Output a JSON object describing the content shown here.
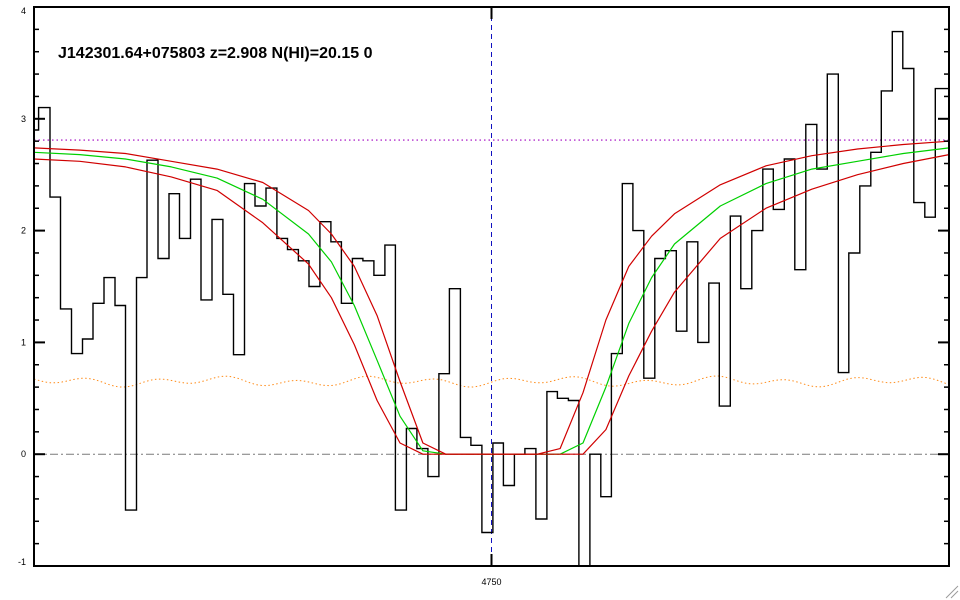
{
  "chart_data": {
    "type": "line",
    "title": "J142301.64+075803 z=2.908 N(HI)=20.15 0",
    "xlabel": "",
    "ylabel": "",
    "ylim": [
      -1,
      4
    ],
    "yticks": [
      -1,
      0,
      1,
      2,
      3,
      4
    ],
    "xlim": [
      4740,
      4760
    ],
    "xticks": [
      4750
    ],
    "x_ticklabels": [
      "4750"
    ],
    "grid": false,
    "colors": {
      "flux": "#000000",
      "model": "#00d000",
      "model_bounds": "#d00000",
      "continuum": "#a000c0",
      "error": "#ff8c1a",
      "zero_line": "#7a7a7a",
      "center_line": "#1010c0"
    },
    "center_x": 4750,
    "continuum_level": 2.81,
    "error_level": 0.65,
    "series": [
      {
        "kind": "flux",
        "style": "steps",
        "x": [
          4740.0,
          4740.1,
          4740.35,
          4740.58,
          4740.82,
          4741.06,
          4741.29,
          4741.53,
          4741.77,
          4742.0,
          4742.24,
          4742.47,
          4742.71,
          4742.95,
          4743.18,
          4743.42,
          4743.65,
          4743.89,
          4744.13,
          4744.36,
          4744.6,
          4744.83,
          4745.07,
          4745.31,
          4745.54,
          4745.78,
          4746.01,
          4746.25,
          4746.49,
          4746.72,
          4746.96,
          4747.19,
          4747.43,
          4747.67,
          4747.9,
          4748.14,
          4748.37,
          4748.61,
          4748.85,
          4749.08,
          4749.32,
          4749.55,
          4749.79,
          4750.03,
          4750.26,
          4750.5,
          4750.73,
          4750.97,
          4751.21,
          4751.44,
          4751.68,
          4751.91,
          4752.15,
          4752.39,
          4752.62,
          4752.86,
          4753.09,
          4753.33,
          4753.57,
          4753.8,
          4754.04,
          4754.27,
          4754.51,
          4754.75,
          4754.98,
          4755.22,
          4755.45,
          4755.69,
          4755.93,
          4756.16,
          4756.4,
          4756.63,
          4756.87,
          4757.11,
          4757.34,
          4757.58,
          4757.81,
          4758.05,
          4758.29,
          4758.52,
          4758.76,
          4758.99,
          4759.23,
          4759.47,
          4759.7
        ],
        "y": [
          2.9,
          3.1,
          2.3,
          1.3,
          0.9,
          1.03,
          1.35,
          1.58,
          1.33,
          -0.5,
          1.58,
          2.63,
          1.75,
          2.33,
          1.93,
          2.46,
          1.38,
          2.1,
          1.43,
          0.89,
          2.42,
          2.22,
          2.38,
          1.93,
          1.83,
          1.73,
          1.5,
          2.08,
          1.9,
          1.35,
          1.75,
          1.73,
          1.6,
          1.87,
          -0.5,
          0.23,
          0.05,
          -0.2,
          0.72,
          1.48,
          0.15,
          0.08,
          -0.7,
          0.1,
          -0.28,
          0.0,
          0.05,
          -0.58,
          0.56,
          0.5,
          0.48,
          -1.0,
          0.0,
          -0.38,
          0.9,
          2.42,
          2.0,
          0.68,
          1.75,
          1.82,
          1.1,
          1.9,
          1.0,
          1.53,
          0.43,
          2.13,
          1.48,
          2.0,
          2.55,
          2.19,
          2.64,
          1.65,
          2.95,
          2.55,
          3.4,
          0.73,
          1.8,
          2.4,
          2.7,
          3.25,
          3.78,
          3.45,
          2.25,
          2.12,
          3.27
        ]
      },
      {
        "kind": "model",
        "style": "line",
        "x": [
          4740.0,
          4741.0,
          4742.0,
          4743.0,
          4744.0,
          4745.0,
          4746.0,
          4746.5,
          4747.0,
          4747.5,
          4748.0,
          4748.5,
          4749.0,
          4749.5,
          4750.0,
          4750.5,
          4751.0,
          4751.5,
          4752.0,
          4752.5,
          4753.0,
          4753.5,
          4754.0,
          4755.0,
          4756.0,
          4757.0,
          4758.0,
          4759.0,
          4760.0
        ],
        "y": [
          2.7,
          2.68,
          2.64,
          2.57,
          2.47,
          2.28,
          1.97,
          1.72,
          1.33,
          0.84,
          0.34,
          0.03,
          0.0,
          0.0,
          0.0,
          0.0,
          0.0,
          0.0,
          0.1,
          0.6,
          1.17,
          1.58,
          1.88,
          2.22,
          2.42,
          2.55,
          2.62,
          2.69,
          2.74
        ]
      },
      {
        "kind": "model_upper",
        "style": "line",
        "x": [
          4740.0,
          4741.0,
          4742.0,
          4743.0,
          4744.0,
          4745.0,
          4746.0,
          4746.5,
          4747.0,
          4747.5,
          4748.0,
          4748.5,
          4749.0,
          4749.5,
          4750.0,
          4750.5,
          4751.0,
          4751.5,
          4752.0,
          4752.5,
          4753.0,
          4753.5,
          4754.0,
          4755.0,
          4756.0,
          4757.0,
          4758.0,
          4759.0,
          4760.0
        ],
        "y": [
          2.74,
          2.72,
          2.69,
          2.62,
          2.55,
          2.43,
          2.18,
          1.97,
          1.68,
          1.24,
          0.65,
          0.1,
          0.0,
          0.0,
          0.0,
          0.0,
          0.0,
          0.05,
          0.55,
          1.2,
          1.68,
          1.95,
          2.15,
          2.41,
          2.58,
          2.67,
          2.73,
          2.77,
          2.8
        ]
      },
      {
        "kind": "model_lower",
        "style": "line",
        "x": [
          4740.0,
          4741.0,
          4742.0,
          4743.0,
          4744.0,
          4745.0,
          4746.0,
          4746.5,
          4747.0,
          4747.5,
          4748.0,
          4748.5,
          4749.0,
          4749.5,
          4750.0,
          4750.5,
          4751.0,
          4751.5,
          4752.0,
          4752.5,
          4753.0,
          4753.5,
          4754.0,
          4755.0,
          4756.0,
          4757.0,
          4758.0,
          4759.0,
          4760.0
        ],
        "y": [
          2.64,
          2.62,
          2.57,
          2.48,
          2.36,
          2.07,
          1.7,
          1.4,
          0.98,
          0.48,
          0.1,
          0.0,
          0.0,
          0.0,
          0.0,
          0.0,
          0.0,
          0.0,
          0.0,
          0.22,
          0.7,
          1.1,
          1.45,
          1.93,
          2.2,
          2.37,
          2.5,
          2.6,
          2.68
        ]
      }
    ]
  }
}
